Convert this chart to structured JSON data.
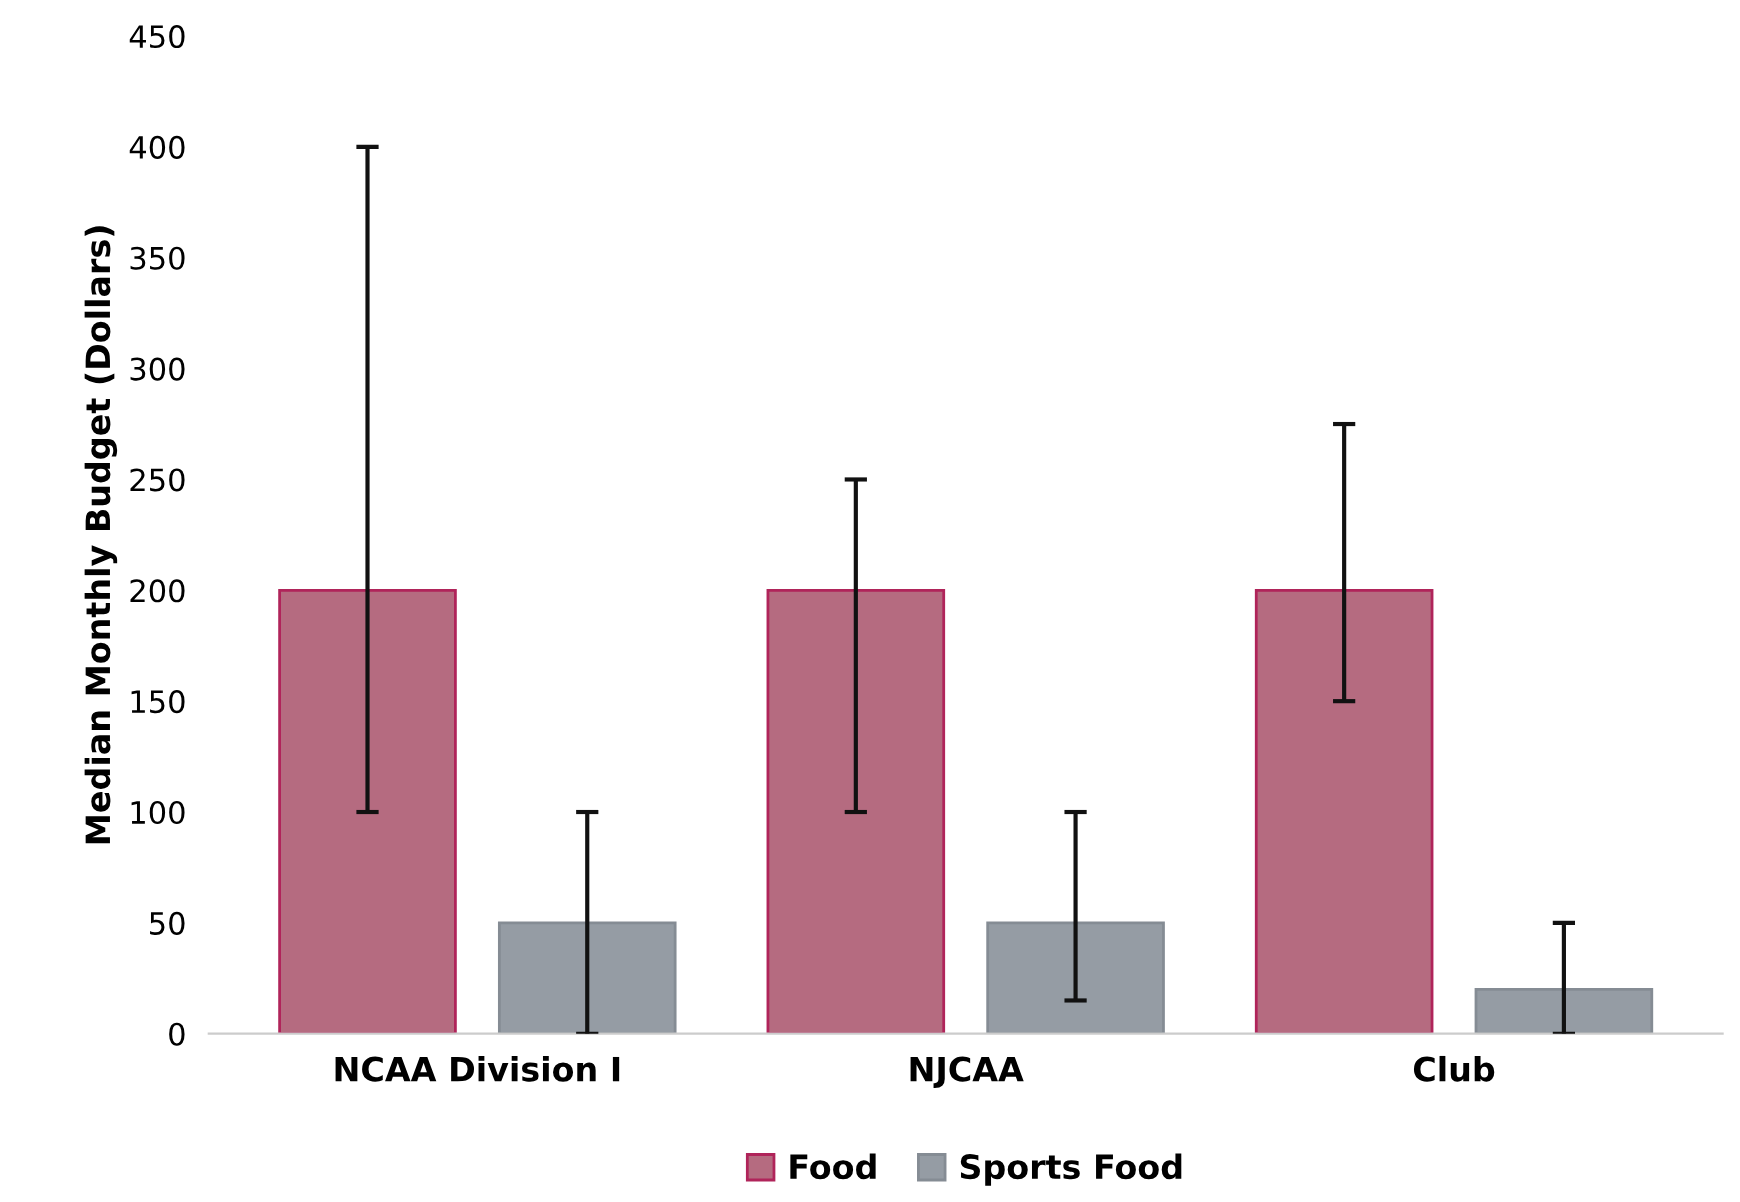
{
  "chart_data": {
    "type": "bar",
    "ylabel": "Median Monthly Budget (Dollars)",
    "categories": [
      "NCAA Division I",
      "NJCAA",
      "Club"
    ],
    "series": [
      {
        "name": "Food",
        "color": "#b56b80",
        "values": [
          200,
          200,
          200
        ],
        "errors": [
          [
            100,
            400
          ],
          [
            100,
            250
          ],
          [
            150,
            275
          ]
        ]
      },
      {
        "name": "Sports Food",
        "color": "#959ca4",
        "values": [
          50,
          50,
          20
        ],
        "errors": [
          [
            0,
            100
          ],
          [
            15,
            100
          ],
          [
            0,
            50
          ]
        ]
      }
    ],
    "ylim": [
      0,
      450
    ],
    "yticks": [
      0,
      50,
      100,
      150,
      200,
      250,
      300,
      350,
      400,
      450
    ],
    "grid": false,
    "legend": "bottom"
  }
}
